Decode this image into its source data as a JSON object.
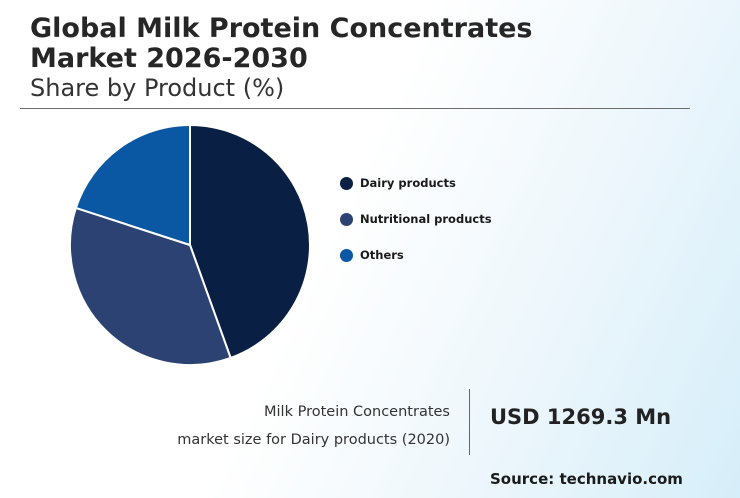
{
  "header": {
    "title_line1": "Global Milk Protein Concentrates",
    "title_line2": "Market 2026-2030",
    "subtitle": "Share by Product (%)"
  },
  "chart_data": {
    "type": "pie",
    "title": "Global Milk Protein Concentrates Market 2026-2030",
    "subtitle": "Share by Product (%)",
    "legend_position": "right",
    "categories": [
      "Dairy products",
      "Nutritional products",
      "Others"
    ],
    "values": [
      44.5,
      35.5,
      20.0
    ],
    "colors": [
      "#0a1f44",
      "#2b4272",
      "#0a57a4"
    ]
  },
  "metric": {
    "label_line1": "Milk Protein Concentrates",
    "label_line2": "market size for Dairy products (2020)",
    "value": "USD 1269.3 Mn"
  },
  "source": "Source: technavio.com"
}
